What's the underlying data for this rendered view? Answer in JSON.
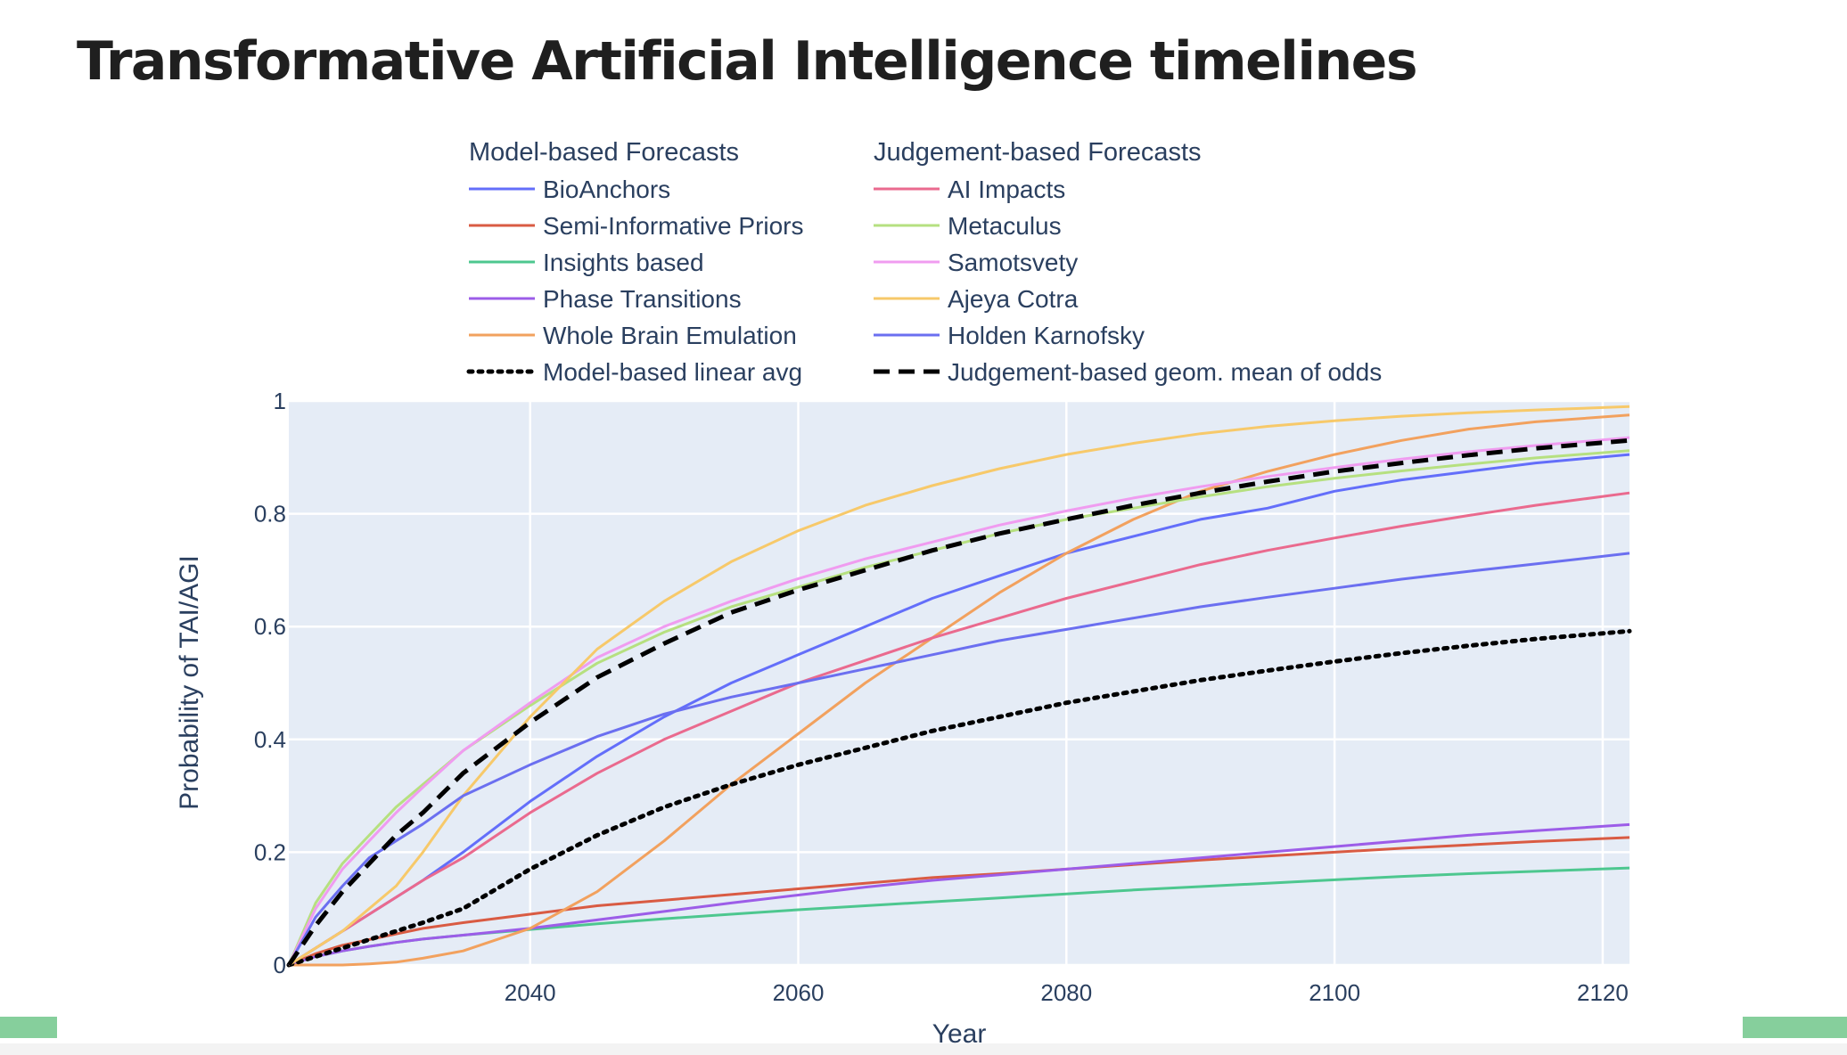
{
  "page": {
    "title": "Transformative Artificial Intelligence timelines"
  },
  "chart_data": {
    "type": "line",
    "title": "",
    "xlabel": "Year",
    "ylabel": "Probability of TAI/AGI",
    "xlim": [
      2022,
      2122
    ],
    "ylim": [
      0,
      1
    ],
    "x_ticks": [
      2040,
      2060,
      2080,
      2100,
      2120
    ],
    "y_ticks": [
      0,
      0.2,
      0.4,
      0.6,
      0.8,
      1
    ],
    "y_tick_labels": [
      "0",
      "0.2",
      "0.4",
      "0.6",
      "0.8",
      "1"
    ],
    "grid": true,
    "plot_bgcolor": "#e5ecf6",
    "legend": {
      "placement": "top",
      "groups": [
        {
          "title": "Model-based Forecasts",
          "series": [
            0,
            1,
            2,
            3,
            4,
            5
          ]
        },
        {
          "title": "Judgement-based Forecasts",
          "series": [
            6,
            7,
            8,
            9,
            10,
            11
          ]
        }
      ]
    },
    "x": [
      2022,
      2024,
      2026,
      2028,
      2030,
      2032,
      2035,
      2040,
      2045,
      2050,
      2055,
      2060,
      2065,
      2070,
      2075,
      2080,
      2085,
      2090,
      2095,
      2100,
      2105,
      2110,
      2115,
      2122
    ],
    "series": [
      {
        "name": "BioAnchors",
        "color": "#636efa",
        "dash": "solid",
        "values": [
          0,
          0.03,
          0.06,
          0.09,
          0.12,
          0.15,
          0.2,
          0.29,
          0.37,
          0.44,
          0.5,
          0.55,
          0.6,
          0.65,
          0.69,
          0.73,
          0.76,
          0.79,
          0.81,
          0.84,
          0.86,
          0.875,
          0.89,
          0.905
        ]
      },
      {
        "name": "Semi-Informative Priors",
        "color": "#d95b43",
        "dash": "solid",
        "values": [
          0,
          0.02,
          0.035,
          0.045,
          0.055,
          0.065,
          0.075,
          0.09,
          0.105,
          0.115,
          0.125,
          0.135,
          0.145,
          0.155,
          0.162,
          0.17,
          0.178,
          0.186,
          0.193,
          0.2,
          0.207,
          0.213,
          0.219,
          0.226
        ]
      },
      {
        "name": "Insights based",
        "color": "#4dc78f",
        "dash": "solid",
        "values": [
          0,
          0.015,
          0.025,
          0.033,
          0.04,
          0.046,
          0.053,
          0.063,
          0.073,
          0.082,
          0.09,
          0.098,
          0.105,
          0.112,
          0.119,
          0.126,
          0.133,
          0.139,
          0.145,
          0.151,
          0.157,
          0.162,
          0.166,
          0.172
        ]
      },
      {
        "name": "Phase Transitions",
        "color": "#9c5de8",
        "dash": "solid",
        "values": [
          0,
          0.015,
          0.025,
          0.033,
          0.04,
          0.046,
          0.053,
          0.065,
          0.08,
          0.095,
          0.11,
          0.124,
          0.138,
          0.15,
          0.16,
          0.17,
          0.18,
          0.19,
          0.2,
          0.21,
          0.22,
          0.23,
          0.238,
          0.249
        ]
      },
      {
        "name": "Whole Brain Emulation",
        "color": "#f2a15e",
        "dash": "solid",
        "values": [
          0,
          0,
          0,
          0.002,
          0.005,
          0.012,
          0.025,
          0.065,
          0.13,
          0.22,
          0.32,
          0.41,
          0.5,
          0.58,
          0.66,
          0.73,
          0.79,
          0.84,
          0.875,
          0.905,
          0.93,
          0.95,
          0.963,
          0.975
        ]
      },
      {
        "name": "Model-based linear avg",
        "color": "#000000",
        "dash": "dot",
        "values": [
          0,
          0.015,
          0.03,
          0.045,
          0.06,
          0.075,
          0.1,
          0.17,
          0.23,
          0.28,
          0.32,
          0.355,
          0.385,
          0.415,
          0.44,
          0.465,
          0.485,
          0.505,
          0.522,
          0.538,
          0.553,
          0.566,
          0.578,
          0.592
        ]
      },
      {
        "name": "AI Impacts",
        "color": "#ea6a8e",
        "dash": "solid",
        "values": [
          0,
          0.03,
          0.06,
          0.09,
          0.12,
          0.15,
          0.19,
          0.27,
          0.34,
          0.4,
          0.45,
          0.5,
          0.54,
          0.58,
          0.615,
          0.65,
          0.68,
          0.71,
          0.735,
          0.757,
          0.778,
          0.797,
          0.815,
          0.837
        ]
      },
      {
        "name": "Metaculus",
        "color": "#b6e080",
        "dash": "solid",
        "values": [
          0,
          0.11,
          0.18,
          0.23,
          0.28,
          0.32,
          0.38,
          0.46,
          0.535,
          0.59,
          0.635,
          0.67,
          0.705,
          0.735,
          0.765,
          0.79,
          0.81,
          0.83,
          0.848,
          0.863,
          0.876,
          0.888,
          0.899,
          0.912
        ]
      },
      {
        "name": "Samotsvety",
        "color": "#f09cf0",
        "dash": "solid",
        "values": [
          0,
          0.1,
          0.17,
          0.22,
          0.27,
          0.315,
          0.38,
          0.465,
          0.545,
          0.6,
          0.645,
          0.685,
          0.72,
          0.75,
          0.78,
          0.805,
          0.828,
          0.848,
          0.866,
          0.882,
          0.897,
          0.91,
          0.921,
          0.935
        ]
      },
      {
        "name": "Ajeya Cotra",
        "color": "#f7c96a",
        "dash": "solid",
        "values": [
          0,
          0.03,
          0.06,
          0.1,
          0.14,
          0.2,
          0.3,
          0.44,
          0.56,
          0.645,
          0.715,
          0.77,
          0.815,
          0.85,
          0.88,
          0.905,
          0.925,
          0.942,
          0.955,
          0.965,
          0.973,
          0.979,
          0.984,
          0.99
        ]
      },
      {
        "name": "Holden Karnofsky",
        "color": "#6b6ff0",
        "dash": "solid",
        "values": [
          0,
          0.085,
          0.14,
          0.19,
          0.22,
          0.25,
          0.3,
          0.355,
          0.405,
          0.445,
          0.475,
          0.5,
          0.525,
          0.55,
          0.575,
          0.595,
          0.615,
          0.635,
          0.652,
          0.668,
          0.684,
          0.698,
          0.711,
          0.73
        ]
      },
      {
        "name": "Judgement-based geom. mean of odds",
        "color": "#000000",
        "dash": "dash",
        "values": [
          0,
          0.07,
          0.13,
          0.18,
          0.23,
          0.27,
          0.34,
          0.43,
          0.51,
          0.57,
          0.625,
          0.665,
          0.7,
          0.735,
          0.765,
          0.79,
          0.815,
          0.837,
          0.857,
          0.875,
          0.89,
          0.904,
          0.916,
          0.93
        ]
      }
    ]
  }
}
